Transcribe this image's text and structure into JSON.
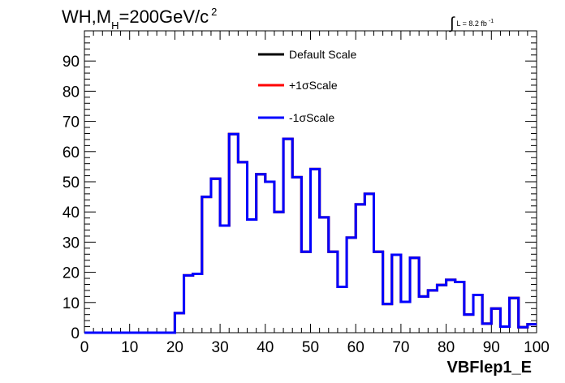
{
  "title": {
    "prefix": "WH,M",
    "subscript": "H",
    "suffix": "=200GeV/c",
    "superscript": "2"
  },
  "luminosity": {
    "integral_symbol": "∫",
    "text": "L = 8.2 fb",
    "superscript": "-1"
  },
  "colors": {
    "default": "#000000",
    "plus": "#ff0000",
    "minus": "#0000ff",
    "frame": "#000000",
    "background": "#ffffff"
  },
  "chart_data": {
    "type": "line",
    "style": "step-histogram",
    "xlabel": "VBFlep1_E",
    "ylabel": "",
    "xlim": [
      0,
      100
    ],
    "ylim": [
      0,
      100
    ],
    "x_ticks": [
      0,
      10,
      20,
      30,
      40,
      50,
      60,
      70,
      80,
      90,
      100
    ],
    "y_ticks": [
      0,
      10,
      20,
      30,
      40,
      50,
      60,
      70,
      80,
      90
    ],
    "grid": false,
    "legend_position": "top-center",
    "bin_width": 2,
    "bin_edges_start": 0,
    "series": [
      {
        "name": "Default Scale",
        "color": "#000000",
        "values": [
          0,
          0,
          0,
          0,
          0,
          0,
          0,
          0,
          0,
          0,
          6.5,
          19,
          19.5,
          45,
          51,
          35.5,
          65.8,
          56.5,
          37.5,
          52.5,
          50,
          40,
          64.2,
          51.5,
          26.8,
          54.2,
          38.2,
          26.8,
          15.2,
          31.5,
          42.5,
          46,
          26.8,
          9.5,
          25.8,
          10.2,
          24.8,
          12,
          14,
          15.8,
          17.5,
          16.8,
          6,
          12.5,
          3,
          8,
          2,
          11.5,
          1.8,
          2.8
        ]
      },
      {
        "name": "+1σScale",
        "color": "#ff0000",
        "values": [
          0,
          0,
          0,
          0,
          0,
          0,
          0,
          0,
          0,
          0,
          6.5,
          19,
          19.5,
          45,
          51,
          35.5,
          65.8,
          56.5,
          37.5,
          52.5,
          50,
          40,
          64.2,
          51.5,
          26.8,
          54.2,
          38.2,
          26.8,
          15.2,
          31.5,
          42.5,
          46,
          26.8,
          9.5,
          25.8,
          10.2,
          24.8,
          12,
          14,
          15.8,
          17.5,
          16.8,
          6,
          12.5,
          3,
          8,
          2,
          11.5,
          1.8,
          2.8
        ]
      },
      {
        "name": "-1σScale",
        "color": "#0000ff",
        "values": [
          0,
          0,
          0,
          0,
          0,
          0,
          0,
          0,
          0,
          0,
          6.5,
          19,
          19.5,
          45,
          51,
          35.5,
          65.8,
          56.5,
          37.5,
          52.5,
          50,
          40,
          64.2,
          51.5,
          26.8,
          54.2,
          38.2,
          26.8,
          15.2,
          31.5,
          42.5,
          46,
          26.8,
          9.5,
          25.8,
          10.2,
          24.8,
          12,
          14,
          15.8,
          17.5,
          16.8,
          6,
          12.5,
          3,
          8,
          2,
          11.5,
          1.8,
          2.8
        ]
      }
    ]
  }
}
